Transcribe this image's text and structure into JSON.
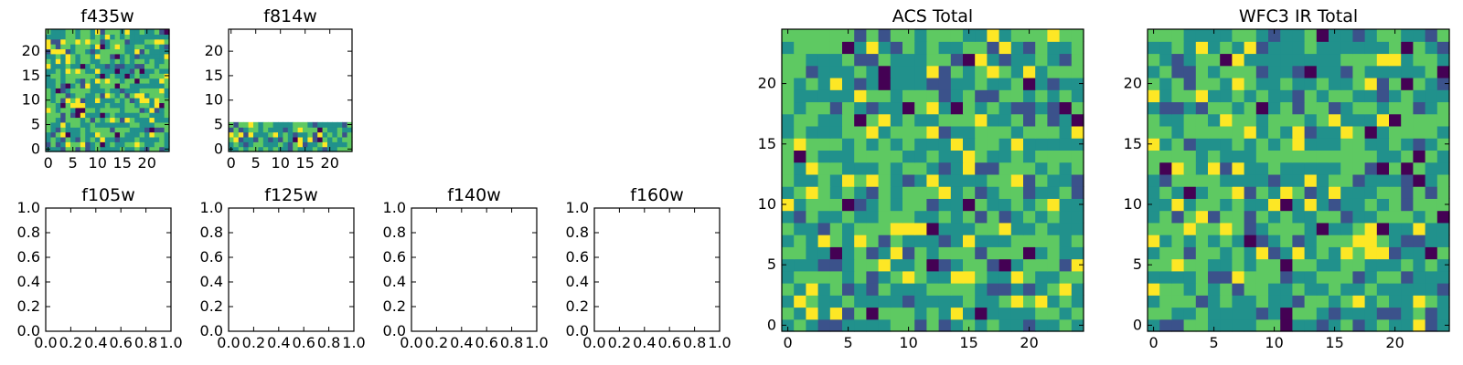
{
  "palette": [
    "#440154",
    "#3b528b",
    "#21918c",
    "#5ec962",
    "#fde725"
  ],
  "chart_data": [
    {
      "id": "f435w",
      "type": "heatmap",
      "title": "f435w",
      "seed": 11,
      "grid": {
        "cols": 25,
        "rows": 25,
        "filled_rows": 25
      },
      "xticks": [
        {
          "v": 0,
          "label": "0"
        },
        {
          "v": 5,
          "label": "5"
        },
        {
          "v": 10,
          "label": "10"
        },
        {
          "v": 15,
          "label": "15"
        },
        {
          "v": 20,
          "label": "20"
        }
      ],
      "yticks": [
        {
          "v": 0,
          "label": "0"
        },
        {
          "v": 5,
          "label": "5"
        },
        {
          "v": 10,
          "label": "10"
        },
        {
          "v": 15,
          "label": "15"
        },
        {
          "v": 20,
          "label": "20"
        }
      ],
      "xlim": [
        -0.5,
        24.5
      ],
      "ylim": [
        -0.5,
        24.5
      ]
    },
    {
      "id": "f814w",
      "type": "heatmap",
      "title": "f814w",
      "seed": 23,
      "grid": {
        "cols": 25,
        "rows": 25,
        "filled_rows": 6
      },
      "xticks": [
        {
          "v": 0,
          "label": "0"
        },
        {
          "v": 5,
          "label": "5"
        },
        {
          "v": 10,
          "label": "10"
        },
        {
          "v": 15,
          "label": "15"
        },
        {
          "v": 20,
          "label": "20"
        }
      ],
      "yticks": [
        {
          "v": 0,
          "label": "0"
        },
        {
          "v": 5,
          "label": "5"
        },
        {
          "v": 10,
          "label": "10"
        },
        {
          "v": 15,
          "label": "15"
        },
        {
          "v": 20,
          "label": "20"
        }
      ],
      "xlim": [
        -0.5,
        24.5
      ],
      "ylim": [
        -0.5,
        24.5
      ]
    },
    {
      "id": "f105w",
      "type": "heatmap",
      "title": "f105w",
      "empty": true,
      "xticks": [
        {
          "v": 0,
          "label": "0.0"
        },
        {
          "v": 0.2,
          "label": "0.2"
        },
        {
          "v": 0.4,
          "label": "0.4"
        },
        {
          "v": 0.6,
          "label": "0.6"
        },
        {
          "v": 0.8,
          "label": "0.8"
        },
        {
          "v": 1,
          "label": "1.0"
        }
      ],
      "yticks": [
        {
          "v": 0,
          "label": "0.0"
        },
        {
          "v": 0.2,
          "label": "0.2"
        },
        {
          "v": 0.4,
          "label": "0.4"
        },
        {
          "v": 0.6,
          "label": "0.6"
        },
        {
          "v": 0.8,
          "label": "0.8"
        },
        {
          "v": 1,
          "label": "1.0"
        }
      ],
      "xlim": [
        0,
        1
      ],
      "ylim": [
        0,
        1
      ]
    },
    {
      "id": "f125w",
      "type": "heatmap",
      "title": "f125w",
      "empty": true,
      "xticks": [
        {
          "v": 0,
          "label": "0.0"
        },
        {
          "v": 0.2,
          "label": "0.2"
        },
        {
          "v": 0.4,
          "label": "0.4"
        },
        {
          "v": 0.6,
          "label": "0.6"
        },
        {
          "v": 0.8,
          "label": "0.8"
        },
        {
          "v": 1,
          "label": "1.0"
        }
      ],
      "yticks": [
        {
          "v": 0,
          "label": "0.0"
        },
        {
          "v": 0.2,
          "label": "0.2"
        },
        {
          "v": 0.4,
          "label": "0.4"
        },
        {
          "v": 0.6,
          "label": "0.6"
        },
        {
          "v": 0.8,
          "label": "0.8"
        },
        {
          "v": 1,
          "label": "1.0"
        }
      ],
      "xlim": [
        0,
        1
      ],
      "ylim": [
        0,
        1
      ]
    },
    {
      "id": "f140w",
      "type": "heatmap",
      "title": "f140w",
      "empty": true,
      "xticks": [
        {
          "v": 0,
          "label": "0.0"
        },
        {
          "v": 0.2,
          "label": "0.2"
        },
        {
          "v": 0.4,
          "label": "0.4"
        },
        {
          "v": 0.6,
          "label": "0.6"
        },
        {
          "v": 0.8,
          "label": "0.8"
        },
        {
          "v": 1,
          "label": "1.0"
        }
      ],
      "yticks": [
        {
          "v": 0,
          "label": "0.0"
        },
        {
          "v": 0.2,
          "label": "0.2"
        },
        {
          "v": 0.4,
          "label": "0.4"
        },
        {
          "v": 0.6,
          "label": "0.6"
        },
        {
          "v": 0.8,
          "label": "0.8"
        },
        {
          "v": 1,
          "label": "1.0"
        }
      ],
      "xlim": [
        0,
        1
      ],
      "ylim": [
        0,
        1
      ]
    },
    {
      "id": "f160w",
      "type": "heatmap",
      "title": "f160w",
      "empty": true,
      "xticks": [
        {
          "v": 0,
          "label": "0.0"
        },
        {
          "v": 0.2,
          "label": "0.2"
        },
        {
          "v": 0.4,
          "label": "0.4"
        },
        {
          "v": 0.6,
          "label": "0.6"
        },
        {
          "v": 0.8,
          "label": "0.8"
        },
        {
          "v": 1,
          "label": "1.0"
        }
      ],
      "yticks": [
        {
          "v": 0,
          "label": "0.0"
        },
        {
          "v": 0.2,
          "label": "0.2"
        },
        {
          "v": 0.4,
          "label": "0.4"
        },
        {
          "v": 0.6,
          "label": "0.6"
        },
        {
          "v": 0.8,
          "label": "0.8"
        },
        {
          "v": 1,
          "label": "1.0"
        }
      ],
      "xlim": [
        0,
        1
      ],
      "ylim": [
        0,
        1
      ]
    },
    {
      "id": "acs-total",
      "type": "heatmap",
      "title": "ACS Total",
      "seed": 37,
      "grid": {
        "cols": 25,
        "rows": 25,
        "filled_rows": 25
      },
      "xticks": [
        {
          "v": 0,
          "label": "0"
        },
        {
          "v": 5,
          "label": "5"
        },
        {
          "v": 10,
          "label": "10"
        },
        {
          "v": 15,
          "label": "15"
        },
        {
          "v": 20,
          "label": "20"
        }
      ],
      "yticks": [
        {
          "v": 0,
          "label": "0"
        },
        {
          "v": 5,
          "label": "5"
        },
        {
          "v": 10,
          "label": "10"
        },
        {
          "v": 15,
          "label": "15"
        },
        {
          "v": 20,
          "label": "20"
        }
      ],
      "xlim": [
        -0.5,
        24.5
      ],
      "ylim": [
        -0.5,
        24.5
      ]
    },
    {
      "id": "wfc3-ir-total",
      "type": "heatmap",
      "title": "WFC3 IR Total",
      "seed": 53,
      "grid": {
        "cols": 25,
        "rows": 25,
        "filled_rows": 25
      },
      "xticks": [
        {
          "v": 0,
          "label": "0"
        },
        {
          "v": 5,
          "label": "5"
        },
        {
          "v": 10,
          "label": "10"
        },
        {
          "v": 15,
          "label": "15"
        },
        {
          "v": 20,
          "label": "20"
        }
      ],
      "yticks": [
        {
          "v": 0,
          "label": "0"
        },
        {
          "v": 5,
          "label": "5"
        },
        {
          "v": 10,
          "label": "10"
        },
        {
          "v": 15,
          "label": "15"
        },
        {
          "v": 20,
          "label": "20"
        }
      ],
      "xlim": [
        -0.5,
        24.5
      ],
      "ylim": [
        -0.5,
        24.5
      ]
    }
  ]
}
